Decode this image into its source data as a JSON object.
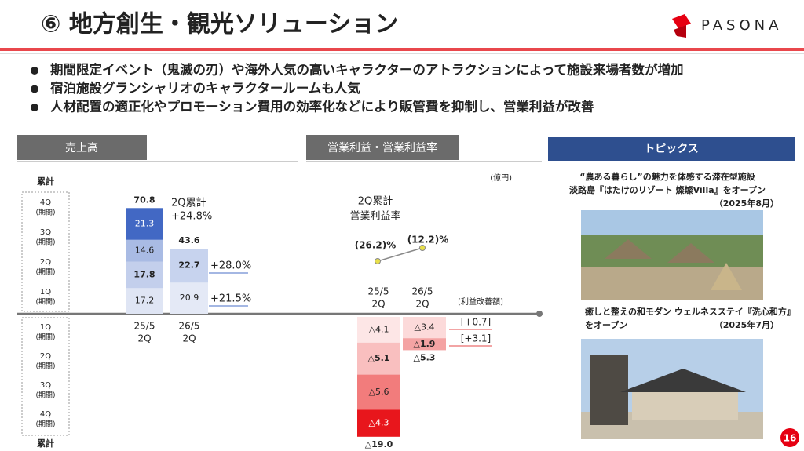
{
  "header": {
    "title": "⑥ 地方創生・観光ソリューション",
    "logo": "PASONA"
  },
  "bullets": [
    "期間限定イベント（鬼滅の刃）や海外人気の高いキャラクターのアトラクションによって施設来場者数が増加",
    "宿泊施設グランシャリオのキャラクタールームも人気",
    "人材配置の適正化やプロモーション費用の効率化などにより販管費を抑制し、営業利益が改善"
  ],
  "quarter_axis": {
    "cumulative_top": "累計",
    "cumulative_bottom": "累計",
    "upper": [
      [
        "4Q",
        "(期間)"
      ],
      [
        "3Q",
        "(期間)"
      ],
      [
        "2Q",
        "(期間)"
      ],
      [
        "1Q",
        "(期間)"
      ]
    ],
    "lower": [
      [
        "1Q",
        "(期間)"
      ],
      [
        "2Q",
        "(期間)"
      ],
      [
        "3Q",
        "(期間)"
      ],
      [
        "4Q",
        "(期間)"
      ]
    ]
  },
  "sales": {
    "heading": "売上高",
    "chart": {
      "type": "stacked-bar",
      "periods": [
        {
          "label": [
            "25/5",
            "2Q"
          ],
          "values": [
            17.2,
            17.8,
            14.6,
            21.3
          ],
          "colors": [
            "#dfe5f4",
            "#c3cfec",
            "#a9bbe4",
            "#4268c4"
          ],
          "total": 70.8
        },
        {
          "label": [
            "26/5",
            "2Q"
          ],
          "values": [
            20.9,
            22.7
          ],
          "colors": [
            "#e4e9f6",
            "#c7d3ee"
          ],
          "total": 43.6
        }
      ]
    },
    "growth": {
      "total": [
        "2Q累計",
        "+24.8%"
      ],
      "q2": "+28.0%",
      "q1": "+21.5%"
    }
  },
  "profit": {
    "heading": "営業利益・営業利益率",
    "unit": "(億円)",
    "margin_title": [
      "2Q累計",
      "営業利益率"
    ],
    "margins": [
      "(26.2)%",
      "(12.2)%"
    ],
    "improvement_heading": "[利益改善額]",
    "chart": {
      "type": "stacked-bar",
      "periods": [
        {
          "label": [
            "25/5",
            "2Q"
          ],
          "values": [
            -4.1,
            -5.1,
            -5.6,
            -4.3
          ],
          "value_labels": [
            "△4.1",
            "△5.1",
            "△5.6",
            "△4.3"
          ],
          "colors": [
            "#fde6e6",
            "#f9bfbf",
            "#f27c7c",
            "#e8161c"
          ],
          "total": -19.0,
          "total_label": "△19.0"
        },
        {
          "label": [
            "26/5",
            "2Q"
          ],
          "values": [
            -3.4,
            -1.9
          ],
          "value_labels": [
            "△3.4",
            "△1.9"
          ],
          "colors": [
            "#fcdada",
            "#f4a3a3"
          ],
          "total": -5.3,
          "total_label": "△5.3"
        }
      ]
    },
    "improvements": [
      "[+0.7]",
      "[+3.1]"
    ]
  },
  "topics": {
    "heading": "トピックス",
    "items": [
      {
        "lines": [
          "“農ある暮らし”の魅力を体感する滞在型施設",
          "淡路島『はたけのリゾート 燦燦Villa』をオープン"
        ],
        "date": "（2025年8月）"
      },
      {
        "lines": [
          "癒しと整えの和モダン ウェルネスステイ『洗心和方』",
          "をオープン"
        ],
        "date": "（2025年7月）"
      }
    ]
  },
  "page_number": "16"
}
